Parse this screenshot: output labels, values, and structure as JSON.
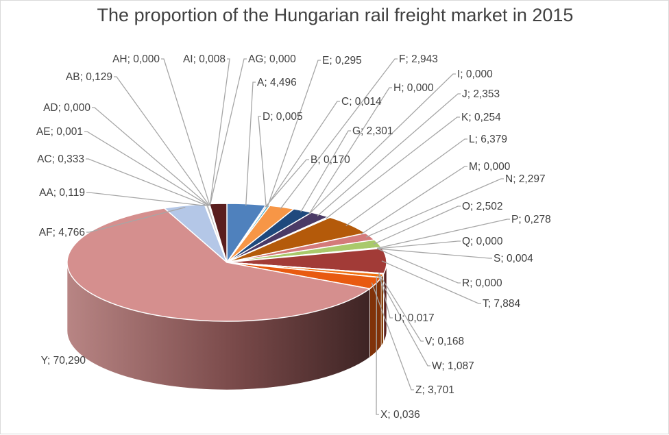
{
  "chart_data": {
    "type": "pie",
    "title": "The proportion of the Hungarian rail freight market in 2015",
    "three_d": true,
    "legend": "none",
    "slices": [
      {
        "name": "A",
        "value": 4.496,
        "label": "A; 4,496",
        "color": "#4f81bd"
      },
      {
        "name": "B",
        "value": 0.17,
        "label": "B; 0,170",
        "color": "#c0504d"
      },
      {
        "name": "C",
        "value": 0.014,
        "label": "C; 0,014",
        "color": "#9bbb59"
      },
      {
        "name": "D",
        "value": 0.005,
        "label": "D; 0,005",
        "color": "#8064a2"
      },
      {
        "name": "E",
        "value": 0.295,
        "label": "E; 0,295",
        "color": "#4bacc6"
      },
      {
        "name": "F",
        "value": 2.943,
        "label": "F; 2,943",
        "color": "#f79646"
      },
      {
        "name": "G",
        "value": 2.301,
        "label": "G; 2,301",
        "color": "#1f497d"
      },
      {
        "name": "H",
        "value": 0.0,
        "label": "H; 0,000",
        "color": "#953735"
      },
      {
        "name": "I",
        "value": 0.0,
        "label": "I; 0,000",
        "color": "#76923c"
      },
      {
        "name": "J",
        "value": 2.353,
        "label": "J; 2,353",
        "color": "#4a3a66"
      },
      {
        "name": "K",
        "value": 0.254,
        "label": "K; 0,254",
        "color": "#31859c"
      },
      {
        "name": "L",
        "value": 6.379,
        "label": "L; 6,379",
        "color": "#b45a0a"
      },
      {
        "name": "M",
        "value": 0.0,
        "label": "M; 0,000",
        "color": "#7f7f7f"
      },
      {
        "name": "N",
        "value": 2.297,
        "label": "N; 2,297",
        "color": "#d47a7a"
      },
      {
        "name": "O",
        "value": 2.502,
        "label": "O; 2,502",
        "color": "#a9c96b"
      },
      {
        "name": "P",
        "value": 0.278,
        "label": "P; 0,278",
        "color": "#9e86c0"
      },
      {
        "name": "Q",
        "value": 0.0,
        "label": "Q; 0,000",
        "color": "#60c0d8"
      },
      {
        "name": "R",
        "value": 0.0,
        "label": "R; 0,000",
        "color": "#f9a86a"
      },
      {
        "name": "S",
        "value": 0.004,
        "label": "S; 0,004",
        "color": "#5b86b8"
      },
      {
        "name": "T",
        "value": 7.884,
        "label": "T; 7,884",
        "color": "#a23b37"
      },
      {
        "name": "U",
        "value": 0.017,
        "label": "U; 0,017",
        "color": "#8aaa48"
      },
      {
        "name": "V",
        "value": 0.168,
        "label": "V; 0,168",
        "color": "#318fab"
      },
      {
        "name": "W",
        "value": 1.087,
        "label": "W; 1,087",
        "color": "#f07010"
      },
      {
        "name": "X",
        "value": 0.036,
        "label": "X; 0,036",
        "color": "#2c4f7a"
      },
      {
        "name": "Z",
        "value": 3.701,
        "label": "Z; 3,701",
        "color": "#e85a10"
      },
      {
        "name": "Y",
        "value": 70.29,
        "label": "Y; 70,290",
        "color": "#d58f8e"
      },
      {
        "name": "AF",
        "value": 4.766,
        "label": "AF; 4,766",
        "color": "#b4c7e7"
      },
      {
        "name": "AA",
        "value": 0.119,
        "label": "AA; 0,119",
        "color": "#c9a0a0"
      },
      {
        "name": "AC",
        "value": 0.333,
        "label": "AC; 0,333",
        "color": "#bcbcbc"
      },
      {
        "name": "AE",
        "value": 0.001,
        "label": "AE; 0,001",
        "color": "#9fbcd8"
      },
      {
        "name": "AD",
        "value": 0.0,
        "label": "AD; 0,000",
        "color": "#e0c090"
      },
      {
        "name": "AB",
        "value": 0.129,
        "label": "AB; 0,129",
        "color": "#c8d8a0"
      },
      {
        "name": "AH",
        "value": 0.0,
        "label": "AH; 0,000",
        "color": "#a0a0c8"
      },
      {
        "name": "AI",
        "value": 0.008,
        "label": "AI; 0,008",
        "color": "#e8e8e8"
      },
      {
        "name": "AG",
        "value": 0.0,
        "label": "AG; 0,000",
        "color": "#5a1e1e"
      }
    ],
    "extra_dark_wedge_color": "#5a1e1e"
  }
}
